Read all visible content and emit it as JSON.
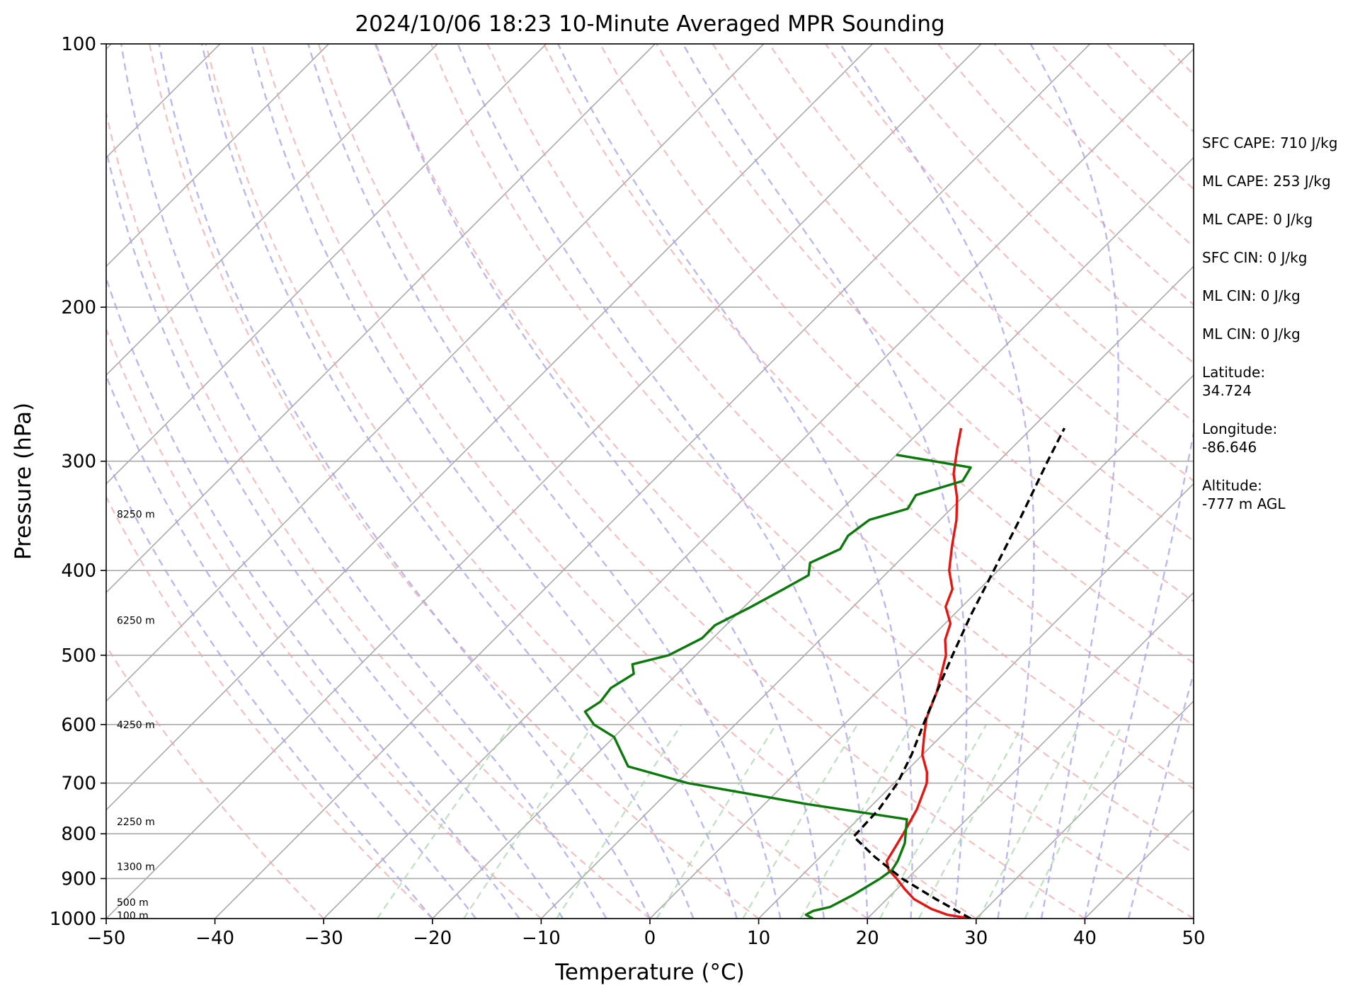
{
  "chart_data": {
    "type": "line",
    "title": "2024/10/06 18:23 10-Minute Averaged MPR Sounding",
    "xlabel": "Temperature (°C)",
    "ylabel": "Pressure (hPa)",
    "xlim": [
      -50,
      50
    ],
    "ylim": [
      1000,
      100
    ],
    "y_scale": "log",
    "skew_degrees": 45,
    "grid": true,
    "x_ticks": [
      -50,
      -40,
      -30,
      -20,
      -10,
      0,
      10,
      20,
      30,
      40,
      50
    ],
    "x_tick_labels": [
      "−50",
      "−40",
      "−30",
      "−20",
      "−10",
      "0",
      "10",
      "20",
      "30",
      "40",
      "50"
    ],
    "y_ticks": [
      1000,
      900,
      800,
      700,
      600,
      500,
      400,
      300,
      200,
      100
    ],
    "y_tick_labels": [
      "1000",
      "900",
      "800",
      "700",
      "600",
      "500",
      "400",
      "300",
      "200",
      "100"
    ],
    "reference_lines": {
      "isotherms_every_C": 10,
      "dry_adiabats": "pink dashed",
      "moist_adiabats": "blue dashed",
      "mixing_ratio_lines": "green dashed"
    },
    "series": [
      {
        "kind": "temperature",
        "color": "#e8140f",
        "style": "solid",
        "points": [
          [
            1000,
            29.5
          ],
          [
            990,
            27.0
          ],
          [
            975,
            25.0
          ],
          [
            950,
            22.5
          ],
          [
            925,
            20.7
          ],
          [
            900,
            19.0
          ],
          [
            880,
            17.5
          ],
          [
            860,
            16.5
          ],
          [
            800,
            15.5
          ],
          [
            750,
            14.5
          ],
          [
            700,
            13.0
          ],
          [
            680,
            12.0
          ],
          [
            650,
            10.0
          ],
          [
            620,
            8.5
          ],
          [
            590,
            7.0
          ],
          [
            550,
            5.5
          ],
          [
            500,
            3.0
          ],
          [
            480,
            1.5
          ],
          [
            460,
            0.5
          ],
          [
            440,
            -1.5
          ],
          [
            420,
            -2.5
          ],
          [
            400,
            -4.5
          ],
          [
            375,
            -6.5
          ],
          [
            350,
            -8.5
          ],
          [
            330,
            -10.5
          ],
          [
            310,
            -13.0
          ],
          [
            290,
            -15.0
          ],
          [
            275,
            -16.5
          ]
        ]
      },
      {
        "kind": "dewpoint",
        "color": "#0a7a0a",
        "style": "solid",
        "points": [
          [
            1000,
            15.0
          ],
          [
            990,
            14.0
          ],
          [
            980,
            14.3
          ],
          [
            970,
            15.5
          ],
          [
            940,
            16.5
          ],
          [
            920,
            17.0
          ],
          [
            900,
            17.5
          ],
          [
            880,
            17.8
          ],
          [
            860,
            17.5
          ],
          [
            820,
            16.5
          ],
          [
            770,
            14.5
          ],
          [
            740,
            4.0
          ],
          [
            700,
            -9.0
          ],
          [
            670,
            -16.0
          ],
          [
            620,
            -20.0
          ],
          [
            600,
            -23.0
          ],
          [
            580,
            -25.0
          ],
          [
            565,
            -24.5
          ],
          [
            545,
            -24.8
          ],
          [
            525,
            -24.0
          ],
          [
            512,
            -25.0
          ],
          [
            500,
            -22.5
          ],
          [
            478,
            -21.0
          ],
          [
            462,
            -21.0
          ],
          [
            442,
            -19.5
          ],
          [
            420,
            -18.0
          ],
          [
            405,
            -17.0
          ],
          [
            392,
            -18.0
          ],
          [
            378,
            -16.5
          ],
          [
            365,
            -17.0
          ],
          [
            350,
            -16.5
          ],
          [
            340,
            -14.0
          ],
          [
            328,
            -14.5
          ],
          [
            316,
            -11.5
          ],
          [
            305,
            -12.0
          ],
          [
            295,
            -20.0
          ]
        ]
      },
      {
        "kind": "parcel",
        "color": "#000000",
        "style": "dashed",
        "points": [
          [
            1000,
            29.5
          ],
          [
            950,
            24.5
          ],
          [
            900,
            19.5
          ],
          [
            850,
            15.0
          ],
          [
            806,
            11.2
          ],
          [
            750,
            11.0
          ],
          [
            700,
            10.3
          ],
          [
            650,
            9.0
          ],
          [
            600,
            7.3
          ],
          [
            550,
            5.5
          ],
          [
            500,
            3.6
          ],
          [
            450,
            1.6
          ],
          [
            400,
            -0.4
          ],
          [
            350,
            -2.7
          ],
          [
            300,
            -5.5
          ],
          [
            275,
            -7.0
          ]
        ]
      }
    ],
    "height_labels": [
      {
        "p": 992,
        "text": "100 m"
      },
      {
        "p": 958,
        "text": "500 m"
      },
      {
        "p": 872,
        "text": "1300 m"
      },
      {
        "p": 775,
        "text": "2250 m"
      },
      {
        "p": 600,
        "text": "4250 m"
      },
      {
        "p": 456,
        "text": "6250 m"
      },
      {
        "p": 345,
        "text": "8250 m"
      }
    ]
  },
  "stats": [
    {
      "id": "sfc-cape",
      "text": "SFC CAPE: 710 J/kg"
    },
    {
      "id": "ml-cape-1",
      "text": "ML CAPE: 253 J/kg"
    },
    {
      "id": "ml-cape-2",
      "text": "ML CAPE: 0 J/kg"
    },
    {
      "id": "sfc-cin",
      "text": "SFC CIN: 0 J/kg"
    },
    {
      "id": "ml-cin-1",
      "text": "ML CIN: 0 J/kg"
    },
    {
      "id": "ml-cin-2",
      "text": "ML CIN: 0 J/kg"
    },
    {
      "id": "latitude",
      "lines": [
        "Latitude:",
        "34.724"
      ]
    },
    {
      "id": "longitude",
      "lines": [
        "Longitude:",
        "-86.646"
      ]
    },
    {
      "id": "altitude",
      "lines": [
        "Altitude:",
        "-777 m AGL"
      ]
    }
  ]
}
